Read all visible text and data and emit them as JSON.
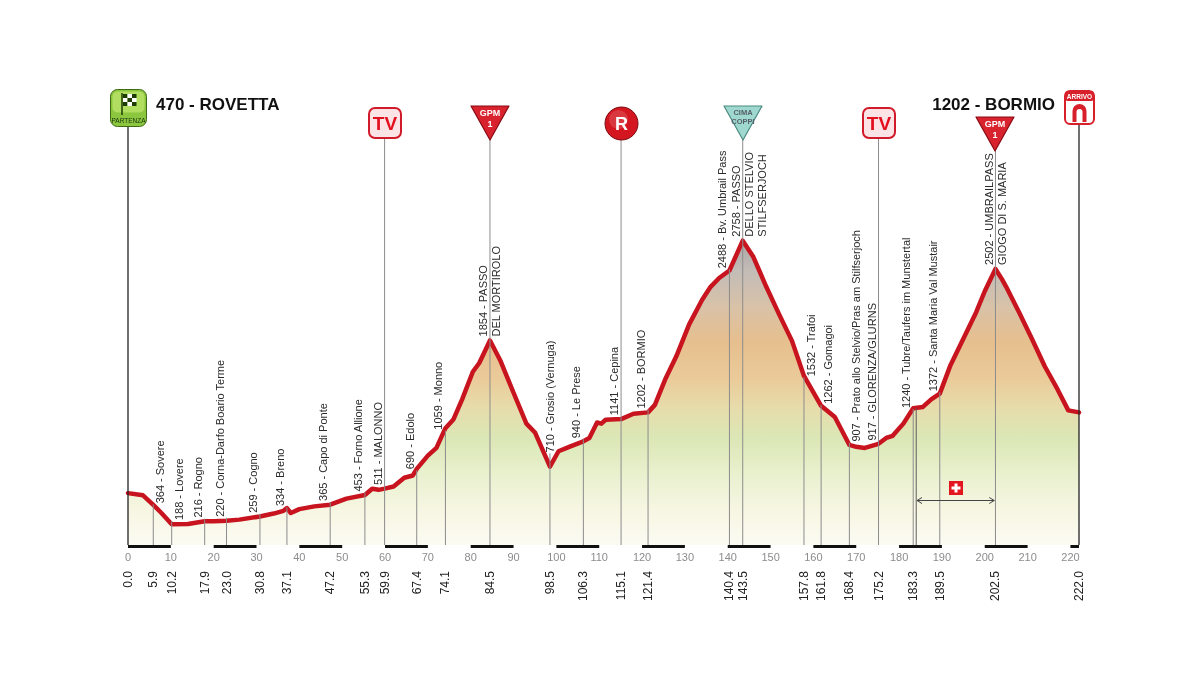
{
  "chart_data": {
    "type": "area",
    "color": "#c8141f",
    "marker": "none",
    "tick_labels": "x",
    "grid": "x",
    "x": [
      0,
      3.5,
      5.9,
      7.8,
      10.2,
      14,
      17.9,
      20,
      23.0,
      26,
      30.8,
      34,
      36.3,
      37.1,
      38,
      40,
      43.5,
      47.2,
      51,
      55.3,
      57,
      58.5,
      59.9,
      62,
      64.5,
      66.5,
      67.4,
      70,
      72,
      74.1,
      76,
      78,
      80.5,
      82,
      84.5,
      87,
      90,
      93,
      95,
      98.5,
      100.5,
      103,
      106.3,
      107.7,
      109.5,
      110.5,
      111.5,
      115.1,
      118,
      121.4,
      123,
      125.5,
      128,
      131,
      134,
      136,
      138,
      140.4,
      143.5,
      146,
      149,
      152,
      155,
      157.8,
      161.8,
      165,
      168.4,
      170,
      172,
      175.2,
      177,
      178.5,
      181,
      183.3,
      185.5,
      187.5,
      189.5,
      192,
      195,
      198,
      200,
      202.5,
      204,
      205,
      208,
      211,
      214,
      217,
      219.5,
      222
    ],
    "values": [
      470,
      450,
      364,
      290,
      188,
      190,
      216,
      215,
      220,
      230,
      259,
      285,
      310,
      334,
      290,
      325,
      350,
      365,
      420,
      453,
      510,
      500,
      511,
      530,
      610,
      630,
      690,
      810,
      880,
      1059,
      1140,
      1320,
      1570,
      1650,
      1854,
      1665,
      1380,
      1100,
      1020,
      710,
      850,
      890,
      940,
      970,
      1110,
      1100,
      1135,
      1141,
      1190,
      1202,
      1270,
      1510,
      1710,
      2000,
      2220,
      2340,
      2420,
      2488,
      2758,
      2610,
      2340,
      2090,
      1850,
      1532,
      1262,
      1160,
      907,
      890,
      880,
      917,
      970,
      990,
      1100,
      1240,
      1250,
      1320,
      1372,
      1630,
      1870,
      2110,
      2300,
      2502,
      2410,
      2340,
      2110,
      1870,
      1620,
      1410,
      1220,
      1202
    ],
    "value_labels": [
      null,
      null,
      "364 - Sovere",
      null,
      "188 - Lovere",
      null,
      "216 - Rogno",
      null,
      "220 - Corna-Darfo Boario Terme",
      null,
      "259 - Cogno",
      null,
      null,
      "334 - Breno",
      null,
      null,
      null,
      "365 - Capo di Ponte",
      null,
      "453 - Forno Allione",
      null,
      null,
      "511 - MALONNO",
      null,
      null,
      null,
      "690 - Edolo",
      null,
      null,
      "1059 - Monno",
      null,
      null,
      null,
      null,
      "1854 - PASSO\nDEL MORTIROLO",
      null,
      null,
      null,
      null,
      "710 - Grosio (Vernuga)",
      null,
      null,
      "940 - Le Prese",
      null,
      null,
      null,
      null,
      "1141 - Cepina",
      null,
      "1202 - BORMIO",
      null,
      null,
      null,
      null,
      null,
      null,
      null,
      "2488 - Bv. Umbrail Pass",
      "2758 - PASSO\nDELLO STELVIO\nSTILFSERJOCH",
      null,
      null,
      null,
      null,
      "1532 - Trafoi",
      "1262 - Gomagoi",
      null,
      "907 - Prato allo Stelvio/Pras am Stilfserjoch",
      null,
      null,
      "917 - GLORENZA/GLURNS",
      null,
      null,
      null,
      "1240 - Tubre/Taufers im Munstertal",
      null,
      null,
      "1372 - Santa Maria Val Mustair",
      null,
      null,
      null,
      null,
      "2502 - UMBRAILPASS\nGIOGO DI S. MARIA",
      null,
      null,
      null,
      null,
      null,
      null,
      null,
      null
    ],
    "xlim": [
      0,
      222
    ],
    "xticks": [
      {
        "value": 0,
        "label": "0.0"
      },
      5.9,
      10.2,
      17.9,
      {
        "value": 23,
        "label": "23.0"
      },
      30.8,
      37.1,
      47.2,
      55.3,
      59.9,
      67.4,
      74.1,
      84.5,
      98.5,
      106.3,
      115.1,
      121.4,
      140.4,
      143.5,
      157.8,
      161.8,
      168.4,
      175.2,
      183.3,
      189.5,
      202.5,
      {
        "value": 222,
        "label": "222.0"
      }
    ],
    "x2lim": [
      0,
      222
    ],
    "x2ticks": [
      0,
      10,
      20,
      30,
      40,
      50,
      60,
      70,
      80,
      90,
      100,
      110,
      120,
      130,
      140,
      150,
      160,
      170,
      180,
      190,
      200,
      210,
      220
    ],
    "ref_lines": [
      {
        "axis": "x",
        "value": 0,
        "label": "PARTENZA"
      },
      {
        "axis": "x",
        "value": 59.9,
        "label": "TV"
      },
      {
        "axis": "x",
        "value": 84.5,
        "label": "GPM\n1"
      },
      {
        "axis": "x",
        "value": 115.1,
        "label": "R"
      },
      {
        "axis": "x",
        "value": 143.5,
        "label": "CIMA\nCOPPI"
      },
      {
        "axis": "x",
        "value": 175.2,
        "label": "TV"
      },
      {
        "axis": "x",
        "value": 184
      },
      {
        "axis": "x",
        "value": 202.5,
        "label": "GPM\n1"
      },
      {
        "axis": "x",
        "value": 222,
        "label": "ARRIVO"
      }
    ],
    "annotations": [
      "470 - ROVETTA",
      "1202 - BORMIO"
    ]
  }
}
